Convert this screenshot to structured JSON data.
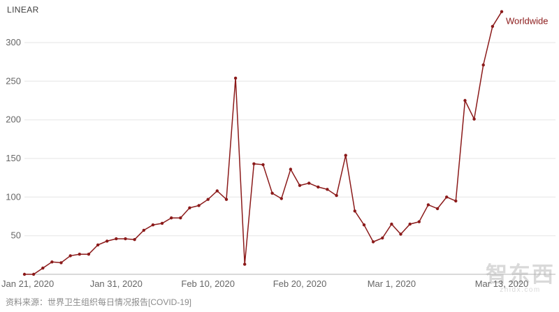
{
  "header": {
    "scale_label": "LINEAR"
  },
  "source_note": "资料来源：世界卫生组织每日情况报告[COVID-19]",
  "watermark": {
    "text": "智东西",
    "sub": "zhidx.com"
  },
  "colors": {
    "line": "#8b1a1a",
    "grid": "#e6e6e6",
    "axis": "#b3b3b3",
    "tick_text": "#666666"
  },
  "chart_data": {
    "type": "line",
    "title": "",
    "scale": "linear",
    "grid": "horizontal",
    "legend_position": "end-of-line",
    "x": [
      "Jan 21",
      "Jan 22",
      "Jan 23",
      "Jan 24",
      "Jan 25",
      "Jan 26",
      "Jan 27",
      "Jan 28",
      "Jan 29",
      "Jan 30",
      "Jan 31",
      "Feb 1",
      "Feb 2",
      "Feb 3",
      "Feb 4",
      "Feb 5",
      "Feb 6",
      "Feb 7",
      "Feb 8",
      "Feb 9",
      "Feb 10",
      "Feb 11",
      "Feb 12",
      "Feb 13",
      "Feb 14",
      "Feb 15",
      "Feb 16",
      "Feb 17",
      "Feb 18",
      "Feb 19",
      "Feb 20",
      "Feb 21",
      "Feb 22",
      "Feb 23",
      "Feb 24",
      "Feb 25",
      "Feb 26",
      "Feb 27",
      "Feb 28",
      "Feb 29",
      "Mar 1",
      "Mar 2",
      "Mar 3",
      "Mar 4",
      "Mar 5",
      "Mar 6",
      "Mar 7",
      "Mar 8",
      "Mar 9",
      "Mar 10",
      "Mar 11",
      "Mar 12",
      "Mar 13"
    ],
    "series": [
      {
        "name": "Worldwide",
        "color": "#8b1a1a",
        "values": [
          0,
          0,
          8,
          16,
          15,
          24,
          26,
          26,
          38,
          43,
          46,
          46,
          45,
          57,
          64,
          66,
          73,
          73,
          86,
          89,
          97,
          108,
          97,
          254,
          13,
          143,
          142,
          105,
          98,
          136,
          115,
          118,
          113,
          110,
          102,
          154,
          82,
          64,
          42,
          47,
          65,
          52,
          65,
          68,
          90,
          85,
          100,
          95,
          225,
          201,
          271,
          321,
          340
        ]
      }
    ],
    "x_tick_labels": [
      "Jan 21, 2020",
      "Jan 31, 2020",
      "Feb 10, 2020",
      "Feb 20, 2020",
      "Mar 1, 2020",
      "Mar 13, 2020"
    ],
    "x_tick_indices": [
      0,
      10,
      20,
      30,
      40,
      52
    ],
    "y_ticks": [
      50,
      100,
      150,
      200,
      250,
      300
    ],
    "ylim": [
      0,
      345
    ],
    "xlabel": "",
    "ylabel": ""
  }
}
